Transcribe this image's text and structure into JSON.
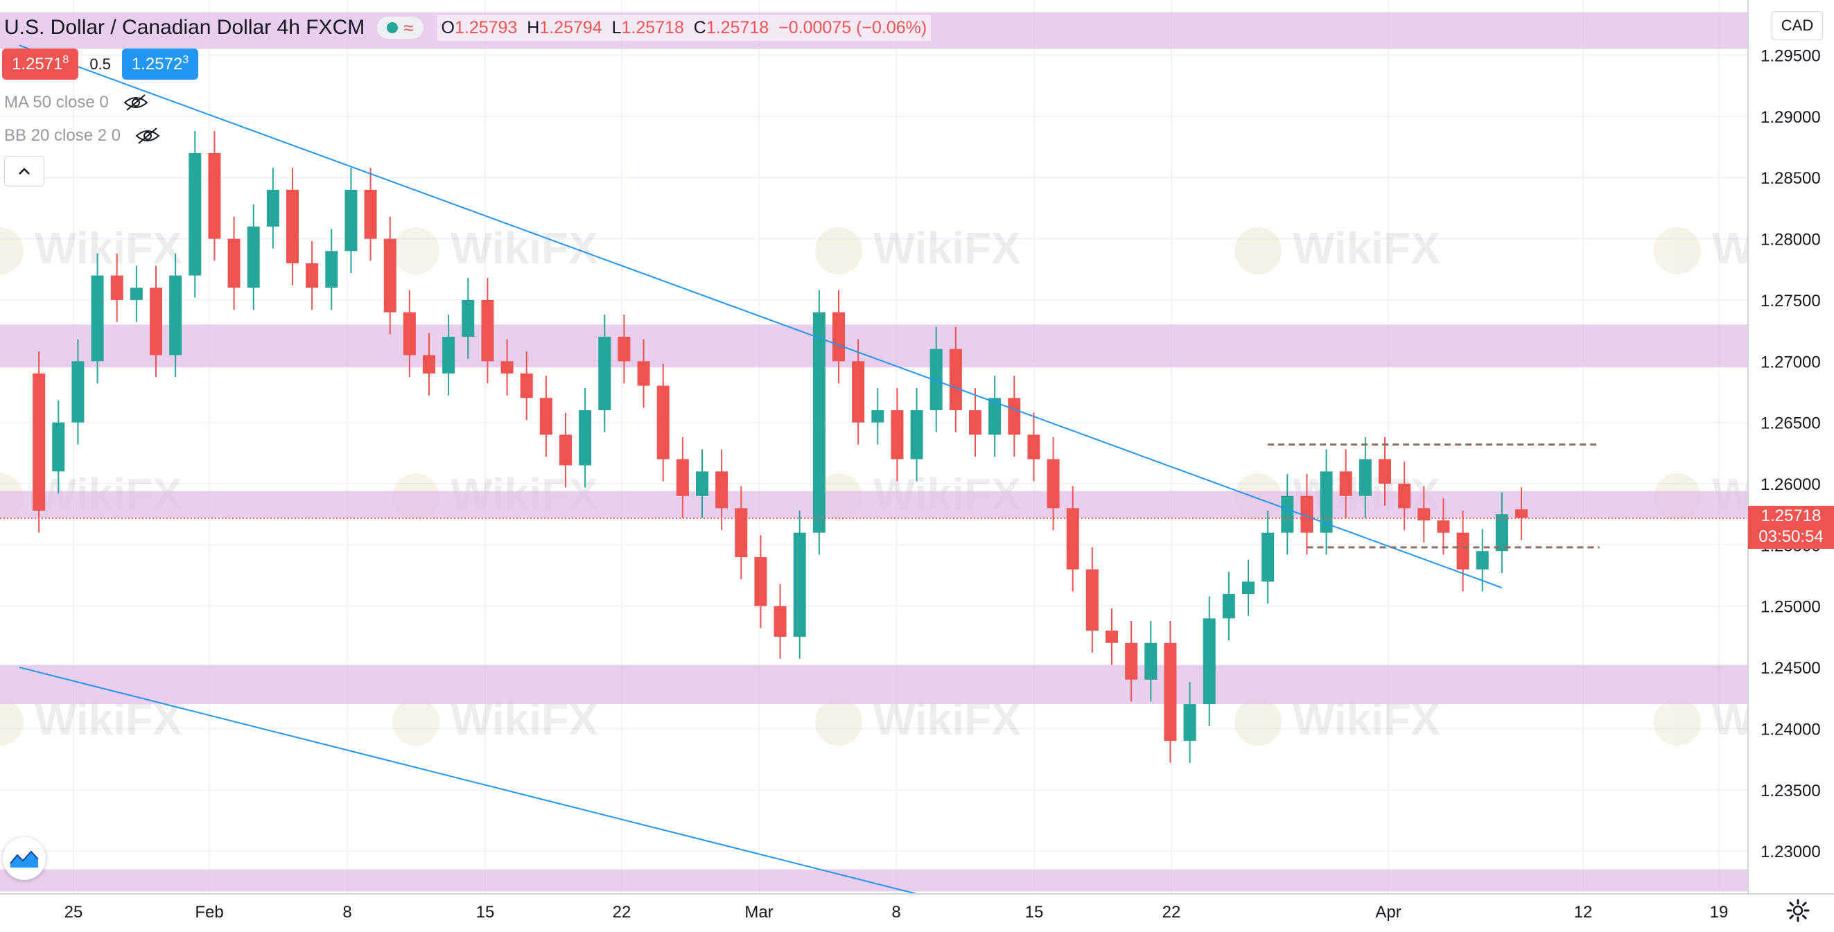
{
  "header": {
    "symbol": "U.S. Dollar / Canadian Dollar",
    "interval": "4h",
    "source": "FXCM",
    "open_label": "O",
    "open": "1.25793",
    "high_label": "H",
    "high": "1.25794",
    "low_label": "L",
    "low": "1.25718",
    "close_label": "C",
    "close": "1.25718",
    "change": "−0.00075 (−0.06%)"
  },
  "trade": {
    "sell_price": "1.2571",
    "sell_sup": "8",
    "spread": "0.5",
    "buy_price": "1.2572",
    "buy_sup": "3"
  },
  "indicators": [
    {
      "label": "MA 50 close 0",
      "icon": "eye-hidden-icon"
    },
    {
      "label": "BB 20 close 2 0",
      "icon": "eye-hidden-icon"
    }
  ],
  "currency_button": "CAD",
  "current_price": {
    "value": "1.25718",
    "countdown": "03:50:54"
  },
  "watermark": "WikiFX",
  "icons": {
    "collapse": "chevron-up-icon",
    "logo": "tradingview-logo-icon",
    "settings": "gear-icon"
  },
  "colors": {
    "up": "#26a69a",
    "down": "#ef5350",
    "zone": "#e1bee7",
    "trendline": "#2196f3",
    "level": "#8d6e63",
    "price_line": "#ef5350"
  },
  "chart_data": {
    "type": "candlestick",
    "title": "U.S. Dollar / Canadian Dollar",
    "y_axis": {
      "ticks": [
        "1.29500",
        "1.29000",
        "1.28500",
        "1.28000",
        "1.27500",
        "1.27000",
        "1.26500",
        "1.26000",
        "1.25500",
        "1.25000",
        "1.24500",
        "1.24000",
        "1.23500",
        "1.23000"
      ],
      "range": [
        1.2265,
        1.2995
      ]
    },
    "x_axis": {
      "ticks": [
        "25",
        "Feb",
        "8",
        "15",
        "22",
        "Mar",
        "8",
        "15",
        "22",
        "Apr",
        "12",
        "19"
      ]
    },
    "zones": [
      [
        1.2955,
        1.2985
      ],
      [
        1.2695,
        1.273
      ],
      [
        1.2572,
        1.2594
      ],
      [
        1.242,
        1.2452
      ],
      [
        1.2267,
        1.2285
      ]
    ],
    "trendlines": [
      {
        "from": [
          "2021-01-20",
          1.2958
        ],
        "to": [
          "2021-04-06",
          1.2515
        ]
      },
      {
        "from": [
          "2021-01-20",
          1.245
        ],
        "to": [
          "2021-03-07",
          1.2265
        ]
      }
    ],
    "levels": [
      {
        "price": 1.2632,
        "from": "2021-03-25",
        "to": "2021-04-11",
        "style": "dashed"
      },
      {
        "price": 1.2548,
        "from": "2021-03-27",
        "to": "2021-04-11",
        "style": "dashed"
      }
    ],
    "last_price": 1.25718,
    "candles": [
      [
        "2021-01-21",
        1.269,
        1.2578
      ],
      [
        "2021-01-22",
        1.261,
        1.265
      ],
      [
        "2021-01-23",
        1.265,
        1.27
      ],
      [
        "2021-01-24",
        1.27,
        1.277
      ],
      [
        "2021-01-25",
        1.277,
        1.275
      ],
      [
        "2021-01-26",
        1.275,
        1.276
      ],
      [
        "2021-01-27",
        1.276,
        1.2705
      ],
      [
        "2021-01-28",
        1.2705,
        1.277
      ],
      [
        "2021-01-29",
        1.277,
        1.287
      ],
      [
        "2021-01-30",
        1.287,
        1.28
      ],
      [
        "2021-01-31",
        1.28,
        1.276
      ],
      [
        "2021-02-01",
        1.276,
        1.281
      ],
      [
        "2021-02-02",
        1.281,
        1.284
      ],
      [
        "2021-02-03",
        1.284,
        1.278
      ],
      [
        "2021-02-04",
        1.278,
        1.276
      ],
      [
        "2021-02-05",
        1.276,
        1.279
      ],
      [
        "2021-02-06",
        1.279,
        1.284
      ],
      [
        "2021-02-07",
        1.284,
        1.28
      ],
      [
        "2021-02-08",
        1.28,
        1.274
      ],
      [
        "2021-02-09",
        1.274,
        1.2705
      ],
      [
        "2021-02-10",
        1.2705,
        1.269
      ],
      [
        "2021-02-11",
        1.269,
        1.272
      ],
      [
        "2021-02-12",
        1.272,
        1.275
      ],
      [
        "2021-02-13",
        1.275,
        1.27
      ],
      [
        "2021-02-14",
        1.27,
        1.269
      ],
      [
        "2021-02-15",
        1.269,
        1.267
      ],
      [
        "2021-02-16",
        1.267,
        1.264
      ],
      [
        "2021-02-17",
        1.264,
        1.2615
      ],
      [
        "2021-02-18",
        1.2615,
        1.266
      ],
      [
        "2021-02-19",
        1.266,
        1.272
      ],
      [
        "2021-02-20",
        1.272,
        1.27
      ],
      [
        "2021-02-21",
        1.27,
        1.268
      ],
      [
        "2021-02-22",
        1.268,
        1.262
      ],
      [
        "2021-02-23",
        1.262,
        1.259
      ],
      [
        "2021-02-24",
        1.259,
        1.261
      ],
      [
        "2021-02-25",
        1.261,
        1.258
      ],
      [
        "2021-02-26",
        1.258,
        1.254
      ],
      [
        "2021-02-27",
        1.254,
        1.25
      ],
      [
        "2021-02-28",
        1.25,
        1.2475
      ],
      [
        "2021-03-01",
        1.2475,
        1.256
      ],
      [
        "2021-03-02",
        1.256,
        1.274
      ],
      [
        "2021-03-03",
        1.274,
        1.27
      ],
      [
        "2021-03-04",
        1.27,
        1.265
      ],
      [
        "2021-03-05",
        1.265,
        1.266
      ],
      [
        "2021-03-06",
        1.266,
        1.262
      ],
      [
        "2021-03-07",
        1.262,
        1.266
      ],
      [
        "2021-03-08",
        1.266,
        1.271
      ],
      [
        "2021-03-09",
        1.271,
        1.266
      ],
      [
        "2021-03-10",
        1.266,
        1.264
      ],
      [
        "2021-03-11",
        1.264,
        1.267
      ],
      [
        "2021-03-12",
        1.267,
        1.264
      ],
      [
        "2021-03-13",
        1.264,
        1.262
      ],
      [
        "2021-03-14",
        1.262,
        1.258
      ],
      [
        "2021-03-15",
        1.258,
        1.253
      ],
      [
        "2021-03-16",
        1.253,
        1.248
      ],
      [
        "2021-03-17",
        1.248,
        1.247
      ],
      [
        "2021-03-18",
        1.247,
        1.244
      ],
      [
        "2021-03-19",
        1.244,
        1.247
      ],
      [
        "2021-03-20",
        1.247,
        1.239
      ],
      [
        "2021-03-21",
        1.239,
        1.242
      ],
      [
        "2021-03-22",
        1.242,
        1.249
      ],
      [
        "2021-03-23",
        1.249,
        1.251
      ],
      [
        "2021-03-24",
        1.251,
        1.252
      ],
      [
        "2021-03-25",
        1.252,
        1.256
      ],
      [
        "2021-03-26",
        1.256,
        1.259
      ],
      [
        "2021-03-27",
        1.259,
        1.256
      ],
      [
        "2021-03-28",
        1.256,
        1.261
      ],
      [
        "2021-03-29",
        1.261,
        1.259
      ],
      [
        "2021-03-30",
        1.259,
        1.262
      ],
      [
        "2021-03-31",
        1.262,
        1.26
      ],
      [
        "2021-04-01",
        1.26,
        1.258
      ],
      [
        "2021-04-02",
        1.258,
        1.257
      ],
      [
        "2021-04-03",
        1.257,
        1.256
      ],
      [
        "2021-04-04",
        1.256,
        1.253
      ],
      [
        "2021-04-05",
        1.253,
        1.2545
      ],
      [
        "2021-04-06",
        1.2545,
        1.2575
      ],
      [
        "2021-04-07",
        1.2579,
        1.2572
      ]
    ]
  }
}
